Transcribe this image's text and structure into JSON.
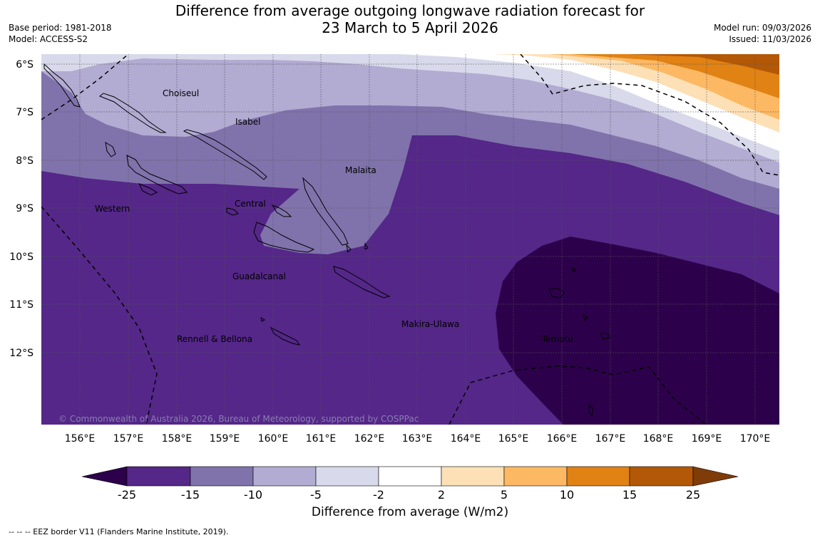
{
  "header": {
    "title_line1": "Difference from average outgoing longwave radiation forecast for",
    "title_line2": "23 March to 5 April 2026",
    "base_period": "Base period: 1981-2018",
    "model": "Model: ACCESS-S2",
    "model_run": "Model run: 09/03/2026",
    "issued": "Issued: 11/03/2026"
  },
  "map": {
    "lat_labels": [
      "6°S",
      "7°S",
      "8°S",
      "9°S",
      "10°S",
      "11°S",
      "12°S"
    ],
    "lon_labels": [
      "156°E",
      "157°E",
      "158°E",
      "159°E",
      "160°E",
      "161°E",
      "162°E",
      "163°E",
      "164°E",
      "165°E",
      "166°E",
      "167°E",
      "168°E",
      "169°E",
      "170°E"
    ],
    "regions": [
      "Choiseul",
      "Isabel",
      "Malaita",
      "Western",
      "Central",
      "Guadalcanal",
      "Makira-Ulawa",
      "Rennell & Bellona",
      "Temotu"
    ],
    "copyright": "© Commonwealth of Australia 2026, Bureau of Meteorology, supported by COSPPac"
  },
  "colorbar": {
    "ticks": [
      "-25",
      "-15",
      "-10",
      "-5",
      "-2",
      "2",
      "5",
      "10",
      "15",
      "25"
    ],
    "colors": {
      "lt_neg25": "#2d004b",
      "neg25_neg15": "#542788",
      "neg15_neg10": "#8073ac",
      "neg10_neg5": "#b2abd2",
      "neg5_neg2": "#d8daeb",
      "neg2_2": "#ffffff",
      "2_5": "#fee0b6",
      "5_10": "#fdb863",
      "10_15": "#e08214",
      "15_25": "#b35806",
      "gt_25": "#7f3b08"
    },
    "label": "Difference from average (W/m2)"
  },
  "legend": {
    "eez": "--  --  -- EEZ border V11 (Flanders Marine Institute, 2019)."
  }
}
